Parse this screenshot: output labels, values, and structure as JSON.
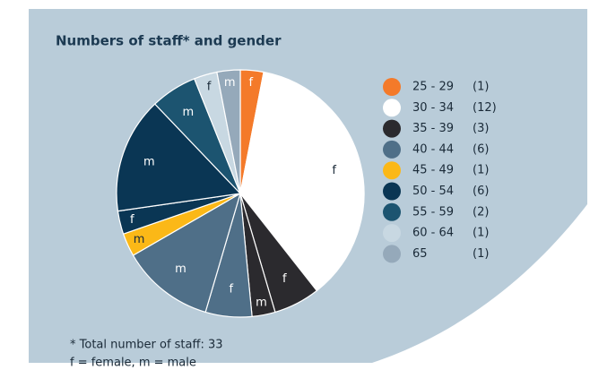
{
  "chart_data": {
    "type": "pie",
    "title": "Numbers of staff* and gender",
    "categories": [
      "25 - 29",
      "30 - 34",
      "35 - 39",
      "40 - 44",
      "45 - 49",
      "50 - 54",
      "55 - 59",
      "60 - 64",
      "65"
    ],
    "values": [
      1,
      12,
      3,
      6,
      1,
      6,
      2,
      1,
      1
    ],
    "value_labels": [
      "(1)",
      "(12)",
      "(3)",
      "(6)",
      "(1)",
      "(6)",
      "(2)",
      "(1)",
      "(1)"
    ],
    "colors": [
      "#f47a2a",
      "#ffffff",
      "#2b2a2e",
      "#4f6f88",
      "#fbb817",
      "#0a3654",
      "#1c5470",
      "#c8d8e2",
      "#95a9ba"
    ],
    "slices": [
      {
        "label": "f",
        "value": 1,
        "color": "#f47a2a"
      },
      {
        "label": "f",
        "value": 12,
        "color": "#ffffff"
      },
      {
        "label": "f",
        "value": 2,
        "color": "#2b2a2e"
      },
      {
        "label": "m",
        "value": 1,
        "color": "#2b2a2e"
      },
      {
        "label": "f",
        "value": 2,
        "color": "#4f6f88"
      },
      {
        "label": "m",
        "value": 4,
        "color": "#4f6f88"
      },
      {
        "label": "m",
        "value": 1,
        "color": "#fbb817"
      },
      {
        "label": "f",
        "value": 1,
        "color": "#0a3654"
      },
      {
        "label": "m",
        "value": 5,
        "color": "#0a3654"
      },
      {
        "label": "m",
        "value": 2,
        "color": "#1c5470"
      },
      {
        "label": "f",
        "value": 1,
        "color": "#c8d8e2"
      },
      {
        "label": "m",
        "value": 1,
        "color": "#95a9ba"
      }
    ],
    "notes": [
      "* Total number of staff: 33",
      "f = female, m = male"
    ]
  }
}
